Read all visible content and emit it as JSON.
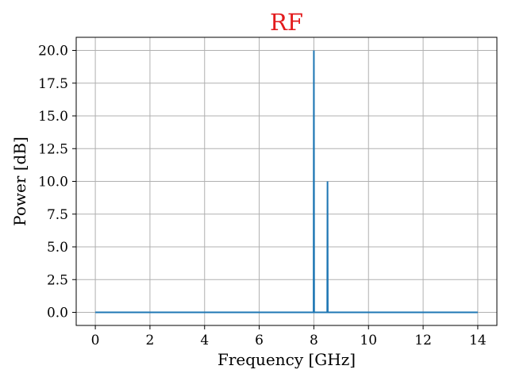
{
  "chart_data": {
    "type": "line",
    "title": "RF",
    "xlabel": "Frequency [GHz]",
    "ylabel": "Power [dB]",
    "xlim": [
      -0.7,
      14.7
    ],
    "ylim": [
      -1.0,
      21.0
    ],
    "xticks": [
      0,
      2,
      4,
      6,
      8,
      10,
      12,
      14
    ],
    "xtick_labels": [
      "0",
      "2",
      "4",
      "6",
      "8",
      "10",
      "12",
      "14"
    ],
    "yticks": [
      0.0,
      2.5,
      5.0,
      7.5,
      10.0,
      12.5,
      15.0,
      17.5,
      20.0
    ],
    "ytick_labels": [
      "0.0",
      "2.5",
      "5.0",
      "7.5",
      "10.0",
      "12.5",
      "15.0",
      "17.5",
      "20.0"
    ],
    "grid": true,
    "series": [
      {
        "color": "#1f77b4",
        "x": [
          0,
          7.99,
          8.0,
          8.01,
          8.49,
          8.5,
          8.51,
          14
        ],
        "y": [
          0,
          0,
          20,
          0,
          0,
          10,
          0,
          0
        ]
      }
    ],
    "colors": {
      "title": "#e31a1c",
      "grid": "#b0b0b0",
      "axes": "#000000"
    }
  }
}
